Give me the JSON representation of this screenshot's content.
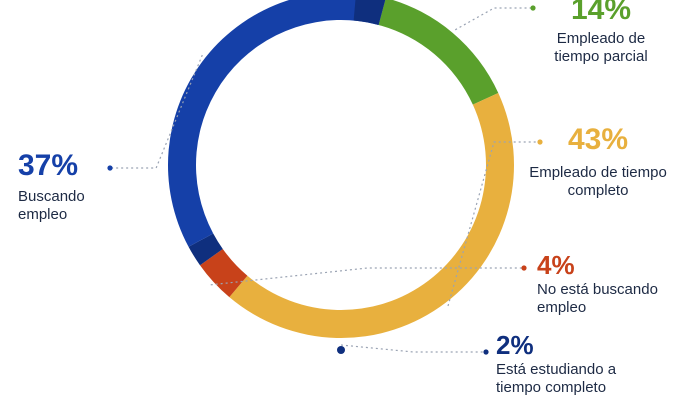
{
  "chart_data": {
    "type": "pie",
    "variant": "donut",
    "categories": [
      "Empleado de tiempo parcial",
      "Empleado de tiempo completo",
      "No está buscando empleo",
      "Está estudiando a tiempo completo",
      "Buscando empleo"
    ],
    "values": [
      14,
      43,
      4,
      2,
      37
    ],
    "value_labels": [
      "14%",
      "43%",
      "4%",
      "2%",
      "37%"
    ],
    "colors": [
      "#5aa02c",
      "#e8b03e",
      "#c8421a",
      "#0f2f7e",
      "#1540a8"
    ]
  }
}
